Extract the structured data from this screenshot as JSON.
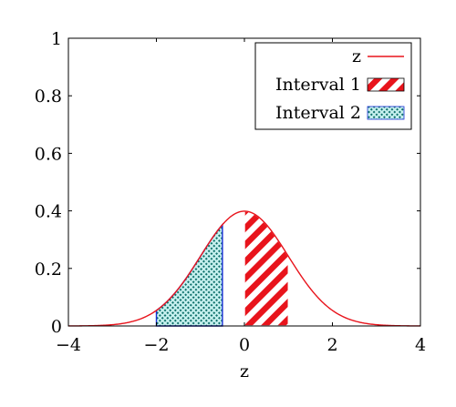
{
  "chart_data": {
    "type": "area",
    "xlabel": "z",
    "ylabel": "",
    "xlim": [
      -4,
      4
    ],
    "ylim": [
      0,
      1
    ],
    "x_ticks": [
      "−4",
      "−2",
      "0",
      "2",
      "4"
    ],
    "y_ticks": [
      "0",
      "0.2",
      "0.4",
      "0.6",
      "0.8",
      "1"
    ],
    "grid": false,
    "legend_position": "top-right",
    "series": [
      {
        "name": "z",
        "kind": "curve",
        "function": "standard normal density",
        "color": "#e8141c"
      },
      {
        "name": "Interval 1",
        "kind": "shaded-interval",
        "from": 0,
        "to": 1,
        "pattern": "red-diagonal-stripes",
        "color": "#e8141c"
      },
      {
        "name": "Interval 2",
        "kind": "shaded-interval",
        "from": -2,
        "to": -0.5,
        "pattern": "blue-green-dots",
        "color": "#1a2fd6"
      }
    ]
  }
}
